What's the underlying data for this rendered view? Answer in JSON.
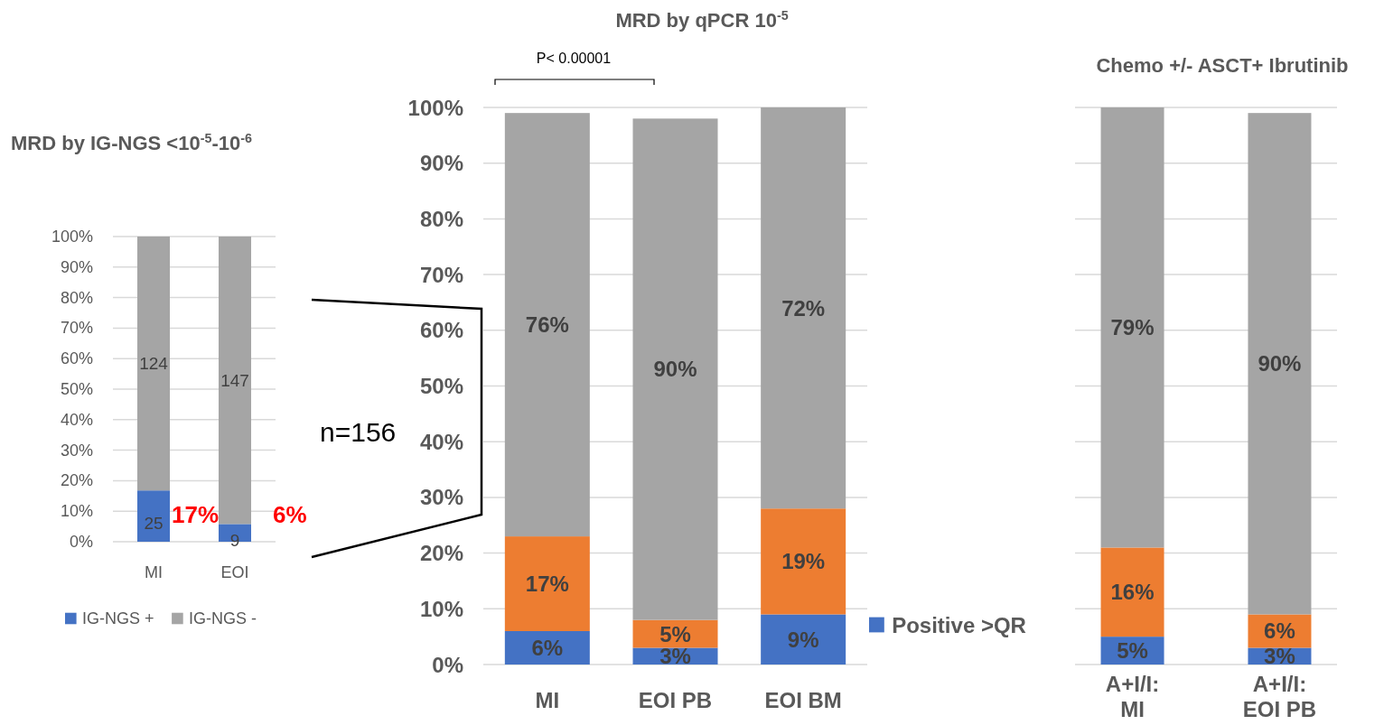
{
  "chart_data": [
    {
      "type": "bar",
      "stacked": true,
      "title": "MRD by IG-NGS <10$^{-5}$-10$^{-6}$",
      "categories": [
        "MI",
        "EOI"
      ],
      "series": [
        {
          "name": "IG-NGS +",
          "color": "#4472c4",
          "values": [
            16.8,
            5.8
          ]
        },
        {
          "name": "IG-NGS -",
          "color": "#a5a5a5",
          "values": [
            83.2,
            94.2
          ]
        }
      ],
      "ylim": [
        0,
        100
      ],
      "yticks": [
        {
          "value": 0,
          "label": "0%"
        },
        {
          "value": 10,
          "label": "10%"
        },
        {
          "value": 20,
          "label": "20%"
        },
        {
          "value": 30,
          "label": "30%"
        },
        {
          "value": 40,
          "label": "40%"
        },
        {
          "value": 50,
          "label": "50%"
        },
        {
          "value": 60,
          "label": "60%"
        },
        {
          "value": 70,
          "label": "70%"
        },
        {
          "value": 80,
          "label": "80%"
        },
        {
          "value": 90,
          "label": "90%"
        },
        {
          "value": 100,
          "label": "100%"
        }
      ],
      "grid": "y",
      "legend": "bottom",
      "annotations": [
        "25",
        "9",
        "124",
        "147",
        "17%",
        "6%"
      ]
    },
    {
      "type": "bar",
      "stacked": true,
      "title": "MRD by qPCR 10$^{-5}$",
      "categories": [
        "MI",
        "EOI PB",
        "EOI BM"
      ],
      "series": [
        {
          "name": "Positive >QR",
          "color": "#4472c4",
          "values": [
            6,
            3,
            9
          ],
          "value_labels": [
            "6%",
            "3%",
            "9%"
          ]
        },
        {
          "color": "#ed7d31",
          "values": [
            17,
            5,
            19
          ],
          "value_labels": [
            "17%",
            "5%",
            "19%"
          ]
        },
        {
          "color": "#a5a5a5",
          "values": [
            76,
            90,
            72
          ],
          "value_labels": [
            "76%",
            "90%",
            "72%"
          ]
        }
      ],
      "ylim": [
        0,
        100
      ],
      "yticks": [
        {
          "value": 0,
          "label": "0%"
        },
        {
          "value": 10,
          "label": "10%"
        },
        {
          "value": 20,
          "label": "20%"
        },
        {
          "value": 30,
          "label": "30%"
        },
        {
          "value": 40,
          "label": "40%"
        },
        {
          "value": 50,
          "label": "50%"
        },
        {
          "value": 60,
          "label": "60%"
        },
        {
          "value": 70,
          "label": "70%"
        },
        {
          "value": 80,
          "label": "80%"
        },
        {
          "value": 90,
          "label": "90%"
        },
        {
          "value": 100,
          "label": "100%"
        }
      ],
      "grid": "y",
      "legend": "bottom right",
      "annotations": [
        "P< 0.00001",
        "n=156"
      ]
    },
    {
      "type": "bar",
      "stacked": true,
      "title": "Chemo +/- ASCT+ Ibrutinib",
      "categories": [
        "A+I/I: MI",
        "A+I/I: EOI PB"
      ],
      "series": [
        {
          "color": "#4472c4",
          "values": [
            5,
            3
          ],
          "value_labels": [
            "5%",
            "3%"
          ]
        },
        {
          "color": "#ed7d31",
          "values": [
            16,
            6
          ],
          "value_labels": [
            "16%",
            "6%"
          ]
        },
        {
          "color": "#a5a5a5",
          "values": [
            79,
            90
          ],
          "value_labels": [
            "79%",
            "90%"
          ]
        }
      ],
      "ylim": [
        0,
        100
      ],
      "yticks": [
        {
          "value": 0,
          "label": null
        },
        {
          "value": 10,
          "label": null
        },
        {
          "value": 20,
          "label": null
        },
        {
          "value": 30,
          "label": null
        },
        {
          "value": 40,
          "label": null
        },
        {
          "value": 50,
          "label": null
        },
        {
          "value": 60,
          "label": null
        },
        {
          "value": 70,
          "label": null
        },
        {
          "value": 80,
          "label": null
        },
        {
          "value": 90,
          "label": null
        },
        {
          "value": 100,
          "label": null
        }
      ],
      "grid": "y",
      "tick_labels": "x"
    }
  ]
}
